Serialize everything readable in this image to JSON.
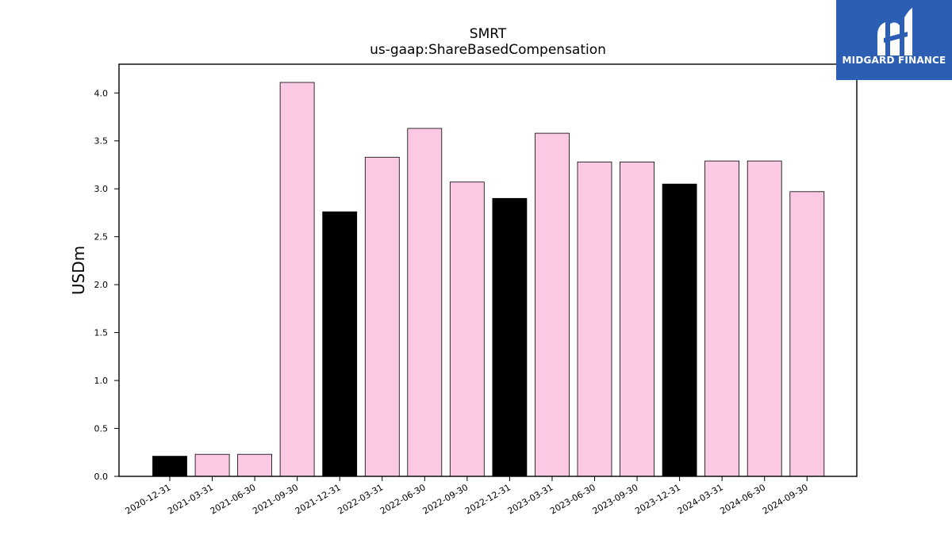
{
  "brand": {
    "name": "MIDGARD FINANCE",
    "background": "#2c5fb3"
  },
  "chart_data": {
    "type": "bar",
    "title": "SMRT",
    "subtitle": "us-gaap:ShareBasedCompensation",
    "xlabel": "",
    "ylabel": "USDm",
    "ylim": [
      0,
      4.3
    ],
    "yticks": [
      0.0,
      0.5,
      1.0,
      1.5,
      2.0,
      2.5,
      3.0,
      3.5,
      4.0
    ],
    "categories": [
      "2020-12-31",
      "2021-03-31",
      "2021-06-30",
      "2021-09-30",
      "2021-12-31",
      "2022-03-31",
      "2022-06-30",
      "2022-09-30",
      "2022-12-31",
      "2023-03-31",
      "2023-06-30",
      "2023-09-30",
      "2023-12-31",
      "2024-03-31",
      "2024-06-30",
      "2024-09-30"
    ],
    "values": [
      0.21,
      0.23,
      0.23,
      4.11,
      2.76,
      3.33,
      3.63,
      3.07,
      2.9,
      3.58,
      3.28,
      3.28,
      3.05,
      3.29,
      3.29,
      2.97
    ],
    "bar_colors": [
      "#000000",
      "#fbc9e4",
      "#fbc9e4",
      "#fbc9e4",
      "#000000",
      "#fbc9e4",
      "#fbc9e4",
      "#fbc9e4",
      "#000000",
      "#fbc9e4",
      "#fbc9e4",
      "#fbc9e4",
      "#000000",
      "#fbc9e4",
      "#fbc9e4",
      "#fbc9e4"
    ],
    "grid": false,
    "legend": "none"
  }
}
